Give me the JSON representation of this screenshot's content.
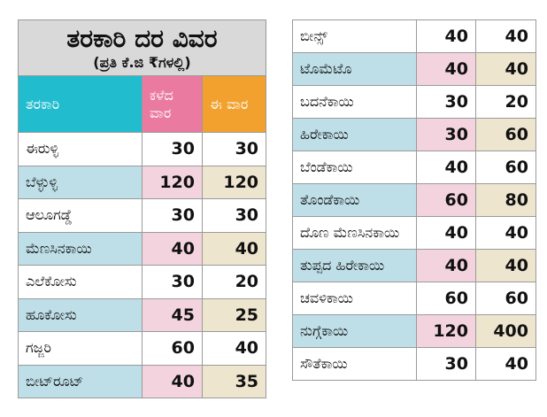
{
  "left": {
    "title": "ತರಕಾರಿ ದರ ವಿವರ",
    "subtitle": "(ಪ್ರತಿ ಕೆ.ಜಿ ₹ಗಳಲ್ಲಿ)",
    "header": [
      "ತರಕಾರಿ",
      "ಕಳೆದ ವಾರ",
      "ಈ ವಾರ"
    ],
    "rows": [
      [
        "ಈರುಳ್ಳಿ",
        30,
        30
      ],
      [
        "ಬೆಳ್ಳುಳ್ಳಿ",
        120,
        120
      ],
      [
        "ಆಲೂಗಡ್ಡೆ",
        30,
        30
      ],
      [
        "ಮೆಣಸಿನಕಾಯಿ",
        40,
        40
      ],
      [
        "ಎಲೆಕೋಸು",
        30,
        20
      ],
      [
        "ಹೂಕೋಸು",
        45,
        25
      ],
      [
        "ಗಜ್ಜರಿ",
        60,
        40
      ],
      [
        "ಬೀಟ್‌ರೂಟ್",
        40,
        35
      ]
    ]
  },
  "right": {
    "rows": [
      [
        "ಬೀನ್ಸ್",
        40,
        40
      ],
      [
        "ಟೊಮೆಟೊ",
        40,
        40
      ],
      [
        "ಬದನೆಕಾಯಿ",
        30,
        20
      ],
      [
        "ಹಿರೇಕಾಯಿ",
        30,
        60
      ],
      [
        "ಬೆಂಡೆಕಾಯಿ",
        40,
        60
      ],
      [
        "ತೊಂಡೆಕಾಯಿ",
        60,
        80
      ],
      [
        "ದೊಣ ಮೆಣಸಿನಕಾಯಿ",
        40,
        40
      ],
      [
        "ತುಪ್ಪದ ಹಿರೇಕಾಯಿ",
        40,
        40
      ],
      [
        "ಚವಳಿಕಾಯಿ",
        60,
        60
      ],
      [
        "ನುಗ್ಗೆಕಾಯಿ",
        120,
        400
      ],
      [
        "ಸೌತೆಕಾಯಿ",
        30,
        40
      ]
    ]
  }
}
